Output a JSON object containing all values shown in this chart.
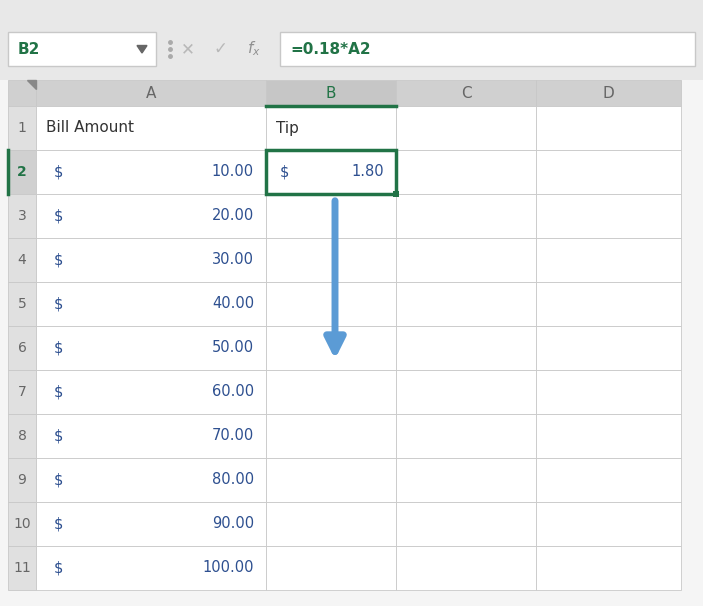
{
  "cell_ref": "B2",
  "formula": "=0.18*A2",
  "col_headers": [
    "A",
    "B",
    "C",
    "D"
  ],
  "row_numbers": [
    1,
    2,
    3,
    4,
    5,
    6,
    7,
    8,
    9,
    10,
    11
  ],
  "bill_amounts": [
    10,
    20,
    30,
    40,
    50,
    60,
    70,
    80,
    90,
    100
  ],
  "tip_display": "1.80",
  "active_cell_color": "#217346",
  "col_header_bg": "#d0d0d0",
  "col_b_header_bg": "#c6c6c6",
  "row_header_bg": "#e0e0e0",
  "active_row_header_bg": "#d0d0d0",
  "grid_color": "#c8c8c8",
  "text_color": "#2e5090",
  "header_text_color": "#666666",
  "fig_bg": "#e8e8e8",
  "cell_bg": "#ffffff",
  "formula_bar_bg": "#ffffff",
  "formula_bar_border": "#c8c8c8",
  "arrow_color": "#5b9bd5",
  "formula_text_color": "#217346",
  "fb_text_gray": "#aaaaaa",
  "row_num_active_color": "#217346",
  "row_num_color": "#666666",
  "data_text_color": "#2e5090",
  "header_label_color": "#333333"
}
